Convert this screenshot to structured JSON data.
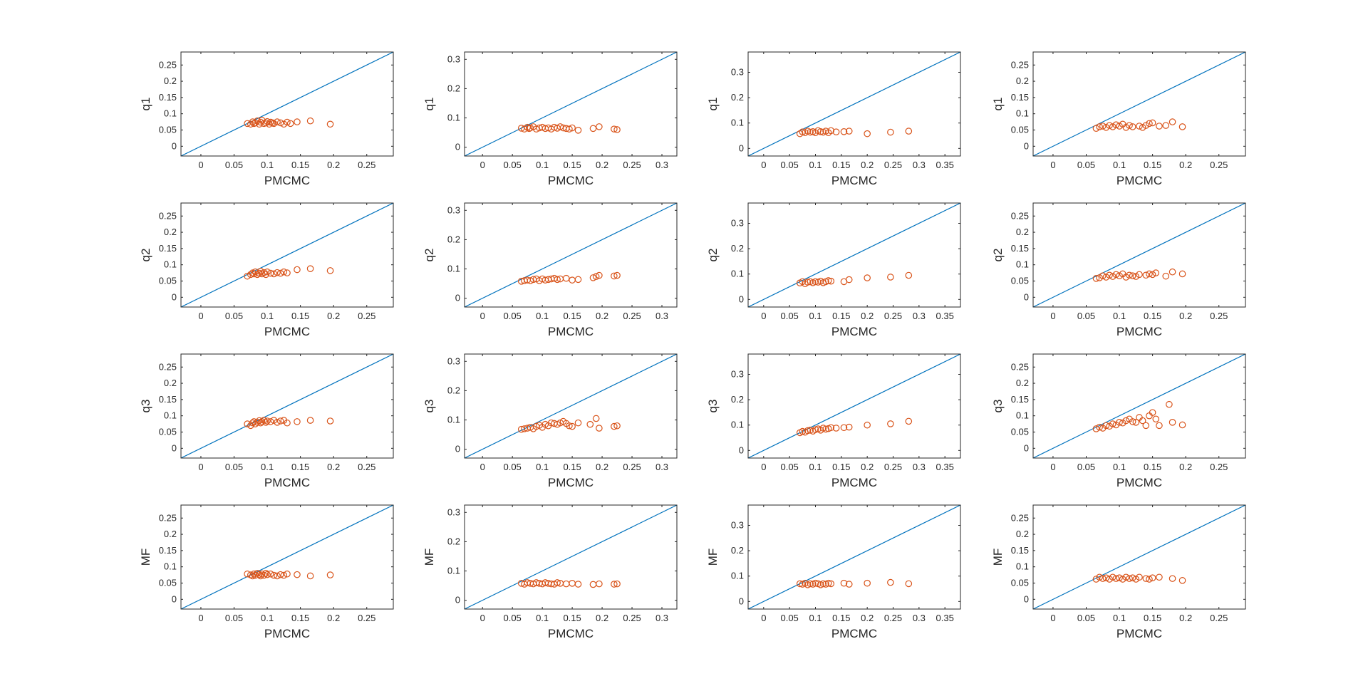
{
  "colors": {
    "background": "#ffffff",
    "axes_box": "#262626",
    "diagonal_line": "#0072bd",
    "markers": "#d95319"
  },
  "figure": {
    "rows": 4,
    "cols": 4,
    "xlabel": "PMCMC",
    "row_ylabels": [
      "q1",
      "q2",
      "q3",
      "MF"
    ],
    "column_axes": [
      {
        "lim": [
          -0.03,
          0.29
        ],
        "ticks": [
          0,
          0.05,
          0.1,
          0.15,
          0.2,
          0.25
        ],
        "tick_labels": [
          "0",
          "0.05",
          "0.1",
          "0.15",
          "0.2",
          "0.25"
        ]
      },
      {
        "lim": [
          -0.03,
          0.325
        ],
        "ticks": [
          0,
          0.05,
          0.1,
          0.15,
          0.2,
          0.25,
          0.3
        ],
        "tick_labels": [
          "0",
          "0.05",
          "0.1",
          "0.15",
          "0.2",
          "0.25",
          "0.3"
        ]
      },
      {
        "lim": [
          -0.03,
          0.38
        ],
        "ticks": [
          0,
          0.05,
          0.1,
          0.15,
          0.2,
          0.25,
          0.3,
          0.35
        ],
        "tick_labels": [
          "0",
          "0.05",
          "0.1",
          "0.15",
          "0.2",
          "0.25",
          "0.3",
          "0.35"
        ]
      },
      {
        "lim": [
          -0.03,
          0.29
        ],
        "ticks": [
          0,
          0.05,
          0.1,
          0.15,
          0.2,
          0.25
        ],
        "tick_labels": [
          "0",
          "0.05",
          "0.1",
          "0.15",
          "0.2",
          "0.25"
        ]
      }
    ],
    "column_yaxes": [
      {
        "lim": [
          -0.03,
          0.29
        ],
        "ticks": [
          0,
          0.05,
          0.1,
          0.15,
          0.2,
          0.25
        ],
        "tick_labels": [
          "0",
          "0.05",
          "0.1",
          "0.15",
          "0.2",
          "0.25"
        ]
      },
      {
        "lim": [
          -0.03,
          0.325
        ],
        "ticks": [
          0,
          0.1,
          0.2,
          0.3
        ],
        "tick_labels": [
          "0",
          "0.1",
          "0.2",
          "0.3"
        ]
      },
      {
        "lim": [
          -0.03,
          0.38
        ],
        "ticks": [
          0,
          0.1,
          0.2,
          0.3
        ],
        "tick_labels": [
          "0",
          "0.1",
          "0.2",
          "0.3"
        ]
      },
      {
        "lim": [
          -0.03,
          0.29
        ],
        "ticks": [
          0,
          0.05,
          0.1,
          0.15,
          0.2,
          0.25
        ],
        "tick_labels": [
          "0",
          "0.05",
          "0.1",
          "0.15",
          "0.2",
          "0.25"
        ]
      }
    ]
  },
  "chart_data": [
    {
      "type": "scatter",
      "row": 0,
      "col": 0,
      "xlabel": "PMCMC",
      "ylabel": "q1",
      "reference_line": "y = x",
      "x": [
        0.07,
        0.075,
        0.078,
        0.08,
        0.082,
        0.085,
        0.088,
        0.09,
        0.092,
        0.095,
        0.098,
        0.1,
        0.103,
        0.105,
        0.108,
        0.11,
        0.115,
        0.12,
        0.125,
        0.13,
        0.135,
        0.145,
        0.165,
        0.195
      ],
      "y": [
        0.07,
        0.068,
        0.075,
        0.07,
        0.072,
        0.078,
        0.068,
        0.074,
        0.08,
        0.07,
        0.072,
        0.076,
        0.068,
        0.074,
        0.072,
        0.07,
        0.075,
        0.072,
        0.068,
        0.074,
        0.07,
        0.075,
        0.078,
        0.068
      ]
    },
    {
      "type": "scatter",
      "row": 0,
      "col": 1,
      "xlabel": "PMCMC",
      "ylabel": "q1",
      "reference_line": "y = x",
      "x": [
        0.065,
        0.07,
        0.075,
        0.078,
        0.08,
        0.085,
        0.09,
        0.095,
        0.1,
        0.105,
        0.11,
        0.115,
        0.12,
        0.125,
        0.13,
        0.135,
        0.14,
        0.145,
        0.15,
        0.16,
        0.185,
        0.195,
        0.22,
        0.225
      ],
      "y": [
        0.065,
        0.062,
        0.068,
        0.064,
        0.066,
        0.07,
        0.062,
        0.066,
        0.068,
        0.064,
        0.066,
        0.062,
        0.068,
        0.065,
        0.07,
        0.066,
        0.064,
        0.062,
        0.066,
        0.058,
        0.064,
        0.07,
        0.062,
        0.06
      ]
    },
    {
      "type": "scatter",
      "row": 0,
      "col": 2,
      "xlabel": "PMCMC",
      "ylabel": "q1",
      "reference_line": "y = x",
      "x": [
        0.07,
        0.075,
        0.08,
        0.085,
        0.09,
        0.095,
        0.1,
        0.105,
        0.11,
        0.115,
        0.12,
        0.125,
        0.13,
        0.14,
        0.155,
        0.165,
        0.2,
        0.245,
        0.28
      ],
      "y": [
        0.058,
        0.065,
        0.062,
        0.068,
        0.064,
        0.066,
        0.062,
        0.07,
        0.066,
        0.064,
        0.068,
        0.062,
        0.07,
        0.065,
        0.066,
        0.068,
        0.058,
        0.064,
        0.068
      ]
    },
    {
      "type": "scatter",
      "row": 0,
      "col": 3,
      "xlabel": "PMCMC",
      "ylabel": "q1",
      "reference_line": "y = x",
      "x": [
        0.065,
        0.07,
        0.075,
        0.08,
        0.085,
        0.09,
        0.095,
        0.1,
        0.105,
        0.11,
        0.115,
        0.12,
        0.13,
        0.135,
        0.14,
        0.145,
        0.15,
        0.16,
        0.17,
        0.18,
        0.195
      ],
      "y": [
        0.055,
        0.06,
        0.062,
        0.058,
        0.064,
        0.06,
        0.066,
        0.062,
        0.068,
        0.058,
        0.064,
        0.06,
        0.062,
        0.058,
        0.064,
        0.07,
        0.072,
        0.062,
        0.064,
        0.075,
        0.06
      ]
    },
    {
      "type": "scatter",
      "row": 1,
      "col": 0,
      "xlabel": "PMCMC",
      "ylabel": "q2",
      "reference_line": "y = x",
      "x": [
        0.07,
        0.075,
        0.078,
        0.08,
        0.082,
        0.085,
        0.088,
        0.09,
        0.092,
        0.095,
        0.098,
        0.1,
        0.105,
        0.11,
        0.115,
        0.12,
        0.125,
        0.13,
        0.145,
        0.165,
        0.195
      ],
      "y": [
        0.065,
        0.07,
        0.075,
        0.072,
        0.078,
        0.07,
        0.074,
        0.08,
        0.072,
        0.076,
        0.07,
        0.078,
        0.074,
        0.072,
        0.076,
        0.074,
        0.078,
        0.075,
        0.085,
        0.088,
        0.082
      ]
    },
    {
      "type": "scatter",
      "row": 1,
      "col": 1,
      "xlabel": "PMCMC",
      "ylabel": "q2",
      "reference_line": "y = x",
      "x": [
        0.065,
        0.07,
        0.075,
        0.08,
        0.085,
        0.09,
        0.095,
        0.1,
        0.105,
        0.11,
        0.115,
        0.12,
        0.125,
        0.13,
        0.14,
        0.15,
        0.16,
        0.185,
        0.19,
        0.195,
        0.22,
        0.225
      ],
      "y": [
        0.058,
        0.06,
        0.062,
        0.06,
        0.064,
        0.066,
        0.06,
        0.066,
        0.062,
        0.064,
        0.066,
        0.068,
        0.064,
        0.066,
        0.068,
        0.062,
        0.064,
        0.07,
        0.074,
        0.078,
        0.076,
        0.078
      ]
    },
    {
      "type": "scatter",
      "row": 1,
      "col": 2,
      "xlabel": "PMCMC",
      "ylabel": "q2",
      "reference_line": "y = x",
      "x": [
        0.07,
        0.075,
        0.08,
        0.085,
        0.09,
        0.095,
        0.1,
        0.105,
        0.11,
        0.115,
        0.12,
        0.125,
        0.13,
        0.155,
        0.165,
        0.2,
        0.245,
        0.28
      ],
      "y": [
        0.065,
        0.07,
        0.062,
        0.068,
        0.07,
        0.066,
        0.07,
        0.068,
        0.072,
        0.066,
        0.07,
        0.074,
        0.072,
        0.07,
        0.078,
        0.085,
        0.088,
        0.095
      ]
    },
    {
      "type": "scatter",
      "row": 1,
      "col": 3,
      "xlabel": "PMCMC",
      "ylabel": "q2",
      "reference_line": "y = x",
      "x": [
        0.065,
        0.07,
        0.075,
        0.08,
        0.085,
        0.09,
        0.095,
        0.1,
        0.105,
        0.11,
        0.115,
        0.12,
        0.125,
        0.13,
        0.14,
        0.145,
        0.15,
        0.155,
        0.17,
        0.18,
        0.195
      ],
      "y": [
        0.058,
        0.06,
        0.066,
        0.062,
        0.068,
        0.064,
        0.07,
        0.066,
        0.072,
        0.062,
        0.068,
        0.066,
        0.064,
        0.07,
        0.068,
        0.072,
        0.07,
        0.075,
        0.065,
        0.078,
        0.072
      ]
    },
    {
      "type": "scatter",
      "row": 2,
      "col": 0,
      "xlabel": "PMCMC",
      "ylabel": "q3",
      "reference_line": "y = x",
      "x": [
        0.07,
        0.075,
        0.078,
        0.08,
        0.082,
        0.085,
        0.088,
        0.09,
        0.092,
        0.095,
        0.098,
        0.1,
        0.105,
        0.11,
        0.115,
        0.12,
        0.125,
        0.13,
        0.145,
        0.165,
        0.195
      ],
      "y": [
        0.075,
        0.07,
        0.078,
        0.082,
        0.075,
        0.08,
        0.085,
        0.078,
        0.082,
        0.086,
        0.08,
        0.084,
        0.082,
        0.086,
        0.08,
        0.084,
        0.086,
        0.078,
        0.082,
        0.086,
        0.084
      ]
    },
    {
      "type": "scatter",
      "row": 2,
      "col": 1,
      "xlabel": "PMCMC",
      "ylabel": "q3",
      "reference_line": "y = x",
      "x": [
        0.065,
        0.07,
        0.075,
        0.08,
        0.085,
        0.09,
        0.095,
        0.1,
        0.105,
        0.11,
        0.115,
        0.12,
        0.125,
        0.13,
        0.135,
        0.14,
        0.145,
        0.15,
        0.16,
        0.18,
        0.19,
        0.195,
        0.22,
        0.225
      ],
      "y": [
        0.068,
        0.07,
        0.072,
        0.075,
        0.07,
        0.078,
        0.082,
        0.075,
        0.085,
        0.08,
        0.09,
        0.088,
        0.085,
        0.09,
        0.095,
        0.088,
        0.08,
        0.078,
        0.09,
        0.085,
        0.105,
        0.072,
        0.078,
        0.08
      ]
    },
    {
      "type": "scatter",
      "row": 2,
      "col": 2,
      "xlabel": "PMCMC",
      "ylabel": "q3",
      "reference_line": "y = x",
      "x": [
        0.07,
        0.075,
        0.08,
        0.085,
        0.09,
        0.095,
        0.1,
        0.105,
        0.11,
        0.115,
        0.12,
        0.125,
        0.13,
        0.14,
        0.155,
        0.165,
        0.2,
        0.245,
        0.28
      ],
      "y": [
        0.07,
        0.075,
        0.072,
        0.078,
        0.08,
        0.076,
        0.082,
        0.085,
        0.08,
        0.088,
        0.084,
        0.086,
        0.09,
        0.088,
        0.09,
        0.092,
        0.1,
        0.105,
        0.115
      ]
    },
    {
      "type": "scatter",
      "row": 2,
      "col": 3,
      "xlabel": "PMCMC",
      "ylabel": "q3",
      "reference_line": "y = x",
      "x": [
        0.065,
        0.07,
        0.075,
        0.08,
        0.085,
        0.09,
        0.095,
        0.1,
        0.105,
        0.11,
        0.115,
        0.12,
        0.125,
        0.13,
        0.135,
        0.14,
        0.145,
        0.15,
        0.155,
        0.16,
        0.175,
        0.18,
        0.195
      ],
      "y": [
        0.06,
        0.065,
        0.062,
        0.07,
        0.068,
        0.075,
        0.072,
        0.08,
        0.078,
        0.085,
        0.09,
        0.082,
        0.08,
        0.095,
        0.085,
        0.07,
        0.1,
        0.11,
        0.09,
        0.07,
        0.135,
        0.08,
        0.072
      ]
    },
    {
      "type": "scatter",
      "row": 3,
      "col": 0,
      "xlabel": "PMCMC",
      "ylabel": "MF",
      "reference_line": "y = x",
      "x": [
        0.07,
        0.075,
        0.078,
        0.08,
        0.082,
        0.085,
        0.088,
        0.09,
        0.092,
        0.095,
        0.098,
        0.1,
        0.105,
        0.11,
        0.115,
        0.12,
        0.125,
        0.13,
        0.145,
        0.165,
        0.195
      ],
      "y": [
        0.078,
        0.075,
        0.072,
        0.078,
        0.074,
        0.08,
        0.076,
        0.072,
        0.078,
        0.074,
        0.08,
        0.076,
        0.078,
        0.074,
        0.072,
        0.076,
        0.074,
        0.078,
        0.076,
        0.072,
        0.075
      ]
    },
    {
      "type": "scatter",
      "row": 3,
      "col": 1,
      "xlabel": "PMCMC",
      "ylabel": "MF",
      "reference_line": "y = x",
      "x": [
        0.065,
        0.07,
        0.075,
        0.08,
        0.085,
        0.09,
        0.095,
        0.1,
        0.105,
        0.11,
        0.115,
        0.12,
        0.125,
        0.13,
        0.14,
        0.15,
        0.16,
        0.185,
        0.195,
        0.22,
        0.225
      ],
      "y": [
        0.058,
        0.055,
        0.06,
        0.058,
        0.056,
        0.06,
        0.058,
        0.056,
        0.06,
        0.058,
        0.056,
        0.055,
        0.06,
        0.058,
        0.056,
        0.058,
        0.055,
        0.054,
        0.056,
        0.055,
        0.056
      ]
    },
    {
      "type": "scatter",
      "row": 3,
      "col": 2,
      "xlabel": "PMCMC",
      "ylabel": "MF",
      "reference_line": "y = x",
      "x": [
        0.07,
        0.075,
        0.08,
        0.085,
        0.09,
        0.095,
        0.1,
        0.105,
        0.11,
        0.115,
        0.12,
        0.125,
        0.13,
        0.155,
        0.165,
        0.2,
        0.245,
        0.28
      ],
      "y": [
        0.07,
        0.068,
        0.072,
        0.066,
        0.07,
        0.068,
        0.072,
        0.07,
        0.066,
        0.07,
        0.068,
        0.072,
        0.07,
        0.072,
        0.068,
        0.072,
        0.075,
        0.07
      ]
    },
    {
      "type": "scatter",
      "row": 3,
      "col": 3,
      "xlabel": "PMCMC",
      "ylabel": "MF",
      "reference_line": "y = x",
      "x": [
        0.065,
        0.07,
        0.075,
        0.08,
        0.085,
        0.09,
        0.095,
        0.1,
        0.105,
        0.11,
        0.115,
        0.12,
        0.125,
        0.13,
        0.14,
        0.145,
        0.15,
        0.16,
        0.18,
        0.195
      ],
      "y": [
        0.062,
        0.068,
        0.064,
        0.066,
        0.062,
        0.068,
        0.064,
        0.066,
        0.062,
        0.068,
        0.064,
        0.066,
        0.062,
        0.068,
        0.064,
        0.062,
        0.066,
        0.068,
        0.064,
        0.058
      ]
    }
  ]
}
